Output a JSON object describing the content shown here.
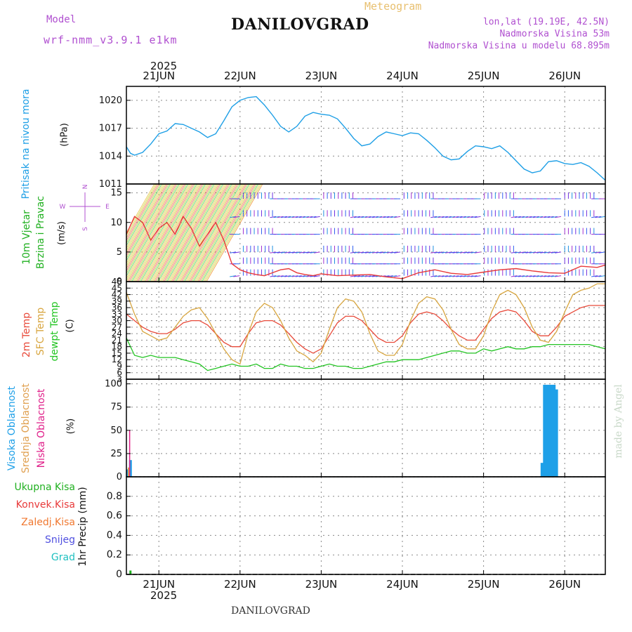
{
  "header": {
    "model_label": "Model",
    "model_name": "wrf-nmm_v3.9.1 e1km",
    "title": "DANILOVGRAD",
    "meteogram_label": "Meteogram",
    "lonlat": "lon,lat (19.19E, 42.5N)",
    "elevation": "Nadmorska Visina 53m",
    "model_elevation": "Nadmorska Visina u modelu 68.895m"
  },
  "footer": {
    "station": "DANILOVGRAD",
    "watermark": "made by Angel"
  },
  "colors": {
    "pressure": "#1e9fe6",
    "wind_green": "#20c020",
    "t2m": "#e84a3a",
    "sfc_temp": "#d8a640",
    "dewpoint": "#22c422",
    "high_cloud": "#1ea0e8",
    "mid_cloud": "#e0a050",
    "low_cloud": "#e0208a",
    "precip_total": "#20b020",
    "precip_conv": "#e83a3a",
    "precip_frozen": "#f07830",
    "snow": "#5050e0",
    "hail": "#20c0c0"
  },
  "chart_data": [
    {
      "type": "line",
      "panel": "pressure",
      "ylabel": "Pritisak na nivou mora",
      "units": "(hPa)",
      "year": "2025",
      "x_ticks": [
        "21JUN",
        "22JUN",
        "23JUN",
        "24JUN",
        "25JUN",
        "26JUN"
      ],
      "x_range_days": [
        20.6,
        26.5
      ],
      "ylim": [
        1011,
        1021.5
      ],
      "yticks": [
        1011,
        1014,
        1017,
        1020
      ],
      "series": [
        {
          "x": [
            20.6,
            20.65,
            20.7,
            20.8,
            20.9,
            21.0,
            21.1,
            21.2,
            21.3,
            21.4,
            21.5,
            21.6,
            21.7,
            21.8,
            21.9,
            22.0,
            22.1,
            22.2,
            22.3,
            22.4,
            22.5,
            22.6,
            22.7,
            22.8,
            22.9,
            23.0,
            23.1,
            23.2,
            23.3,
            23.4,
            23.5,
            23.6,
            23.7,
            23.8,
            23.9,
            24.0,
            24.1,
            24.2,
            24.3,
            24.4,
            24.5,
            24.6,
            24.7,
            24.8,
            24.9,
            25.0,
            25.1,
            25.2,
            25.3,
            25.4,
            25.5,
            25.6,
            25.7,
            25.8,
            25.9,
            26.0,
            26.1,
            26.2,
            26.3,
            26.4,
            26.5
          ],
          "values": [
            1015.0,
            1014.3,
            1014.1,
            1014.4,
            1015.3,
            1016.4,
            1016.7,
            1017.5,
            1017.4,
            1017.0,
            1016.6,
            1016.0,
            1016.4,
            1017.8,
            1019.3,
            1020.0,
            1020.3,
            1020.4,
            1019.5,
            1018.4,
            1017.2,
            1016.6,
            1017.2,
            1018.3,
            1018.7,
            1018.5,
            1018.4,
            1018.0,
            1017.0,
            1015.9,
            1015.1,
            1015.3,
            1016.1,
            1016.6,
            1016.4,
            1016.2,
            1016.5,
            1016.4,
            1015.7,
            1014.9,
            1014.0,
            1013.6,
            1013.7,
            1014.5,
            1015.1,
            1015.0,
            1014.8,
            1015.1,
            1014.4,
            1013.5,
            1012.6,
            1012.2,
            1012.4,
            1013.4,
            1013.5,
            1013.2,
            1013.1,
            1013.3,
            1012.9,
            1012.2,
            1011.4
          ]
        }
      ]
    },
    {
      "type": "line",
      "panel": "wind",
      "ylabel_line1": "10m Vjetar",
      "ylabel_line2": "Brzina i Pravac",
      "units": "(m/s)",
      "compass": {
        "n": "N",
        "s": "S",
        "e": "E",
        "w": "W"
      },
      "ylim": [
        0,
        16.5
      ],
      "yticks": [
        0,
        5,
        10,
        15
      ],
      "series": [
        {
          "name": "wind speed",
          "x": [
            20.6,
            20.7,
            20.8,
            20.9,
            21.0,
            21.1,
            21.2,
            21.3,
            21.4,
            21.5,
            21.6,
            21.7,
            21.8,
            21.9,
            22.0,
            22.1,
            22.2,
            22.3,
            22.4,
            22.5,
            22.6,
            22.7,
            22.8,
            22.9,
            23.0,
            23.2,
            23.4,
            23.6,
            23.8,
            24.0,
            24.2,
            24.4,
            24.6,
            24.8,
            25.0,
            25.2,
            25.4,
            25.6,
            25.8,
            26.0,
            26.2,
            26.4,
            26.5
          ],
          "values": [
            8,
            11,
            10,
            7,
            9,
            10,
            8,
            11,
            9,
            6,
            8,
            10,
            7,
            3,
            2,
            1.5,
            1.2,
            1,
            1.5,
            2,
            2.2,
            1.5,
            1.2,
            1,
            1.3,
            1,
            1.1,
            1.2,
            0.8,
            0.5,
            1.5,
            2,
            1.4,
            1.2,
            1.6,
            2,
            2.2,
            1.8,
            1.5,
            1.4,
            2.6,
            2.4,
            2.8
          ]
        }
      ]
    },
    {
      "type": "line",
      "panel": "temperature",
      "labels": [
        "2m Temp",
        "SFC Temp",
        "dewpt Temp"
      ],
      "units": "(C)",
      "ylim": [
        3,
        48
      ],
      "yticks": [
        3,
        6,
        9,
        12,
        15,
        18,
        21,
        24,
        27,
        30,
        33,
        36,
        39,
        42,
        45,
        48
      ],
      "x": [
        20.6,
        20.7,
        20.8,
        20.9,
        21.0,
        21.1,
        21.2,
        21.3,
        21.4,
        21.5,
        21.6,
        21.7,
        21.8,
        21.9,
        22.0,
        22.1,
        22.2,
        22.3,
        22.4,
        22.5,
        22.6,
        22.7,
        22.8,
        22.9,
        23.0,
        23.1,
        23.2,
        23.3,
        23.4,
        23.5,
        23.6,
        23.7,
        23.8,
        23.9,
        24.0,
        24.1,
        24.2,
        24.3,
        24.4,
        24.5,
        24.6,
        24.7,
        24.8,
        24.9,
        25.0,
        25.1,
        25.2,
        25.3,
        25.4,
        25.5,
        25.6,
        25.7,
        25.8,
        25.9,
        26.0,
        26.1,
        26.2,
        26.3,
        26.4,
        26.5
      ],
      "series": [
        {
          "name": "2m Temp",
          "values": [
            33,
            30,
            27,
            25,
            24,
            24,
            26,
            29,
            30,
            30,
            28,
            24,
            20,
            18,
            18,
            24,
            29,
            30,
            30,
            28,
            24,
            20,
            17,
            15,
            17,
            23,
            29,
            32,
            32,
            30,
            26,
            22,
            20,
            20,
            23,
            29,
            33,
            34,
            33,
            30,
            26,
            23,
            21,
            21,
            26,
            31,
            34,
            35,
            34,
            30,
            25,
            23,
            23,
            27,
            32,
            34,
            36,
            37,
            37,
            37
          ]
        },
        {
          "name": "SFC Temp",
          "values": [
            43,
            33,
            25,
            23,
            21,
            22,
            27,
            32,
            35,
            36,
            31,
            24,
            17,
            12,
            10,
            24,
            34,
            38,
            36,
            30,
            22,
            16,
            14,
            11,
            15,
            26,
            36,
            40,
            39,
            34,
            24,
            16,
            14,
            14,
            19,
            30,
            38,
            41,
            40,
            35,
            26,
            19,
            17,
            17,
            23,
            34,
            42,
            44,
            42,
            36,
            27,
            21,
            20,
            25,
            34,
            42,
            44,
            45,
            47,
            47
          ]
        },
        {
          "name": "dewpt Temp",
          "values": [
            22,
            14,
            13,
            14,
            13,
            13,
            13,
            12,
            11,
            10,
            7,
            8,
            9,
            10,
            9,
            9,
            10,
            8,
            8,
            10,
            9,
            9,
            8,
            8,
            9,
            10,
            9,
            9,
            8,
            8,
            9,
            10,
            11,
            11,
            12,
            12,
            12,
            13,
            14,
            15,
            16,
            16,
            15,
            15,
            17,
            16,
            17,
            18,
            17,
            17,
            18,
            18,
            19,
            19,
            19,
            19,
            19,
            19,
            18,
            17
          ]
        }
      ]
    },
    {
      "type": "bar",
      "panel": "cloud",
      "labels": [
        "Visoka Oblacnost",
        "Srednja Oblacnost",
        "Niska Oblacnost"
      ],
      "units": "(%)",
      "ylim": [
        0,
        105
      ],
      "yticks": [
        0,
        25,
        50,
        75,
        100
      ],
      "series": [
        {
          "name": "Visoka Oblacnost",
          "x": [
            20.62,
            20.65,
            25.72,
            25.75,
            25.78,
            25.81,
            25.84,
            25.87,
            25.9
          ],
          "values": [
            8,
            18,
            15,
            99,
            99,
            99,
            99,
            99,
            94
          ]
        },
        {
          "name": "Srednja Oblacnost",
          "x": [
            20.63
          ],
          "values": [
            10
          ]
        },
        {
          "name": "Niska Oblacnost",
          "x": [
            20.64
          ],
          "values": [
            50
          ]
        }
      ]
    },
    {
      "type": "bar",
      "panel": "precip",
      "legend": [
        "Ukupna Kisa",
        "Konvek.Kisa",
        "Zaledj.Kisa",
        "Snijeg",
        "Grad"
      ],
      "ylabel": "1hr Precip (mm)",
      "ylim": [
        0,
        1.0
      ],
      "yticks": [
        0,
        0.2,
        0.4,
        0.6,
        0.8
      ],
      "x_ticks": [
        "21JUN",
        "22JUN",
        "23JUN",
        "24JUN",
        "25JUN",
        "26JUN"
      ],
      "year": "2025",
      "series": [
        {
          "name": "Ukupna Kisa",
          "x": [
            20.65
          ],
          "values": [
            0.04
          ]
        }
      ]
    }
  ]
}
